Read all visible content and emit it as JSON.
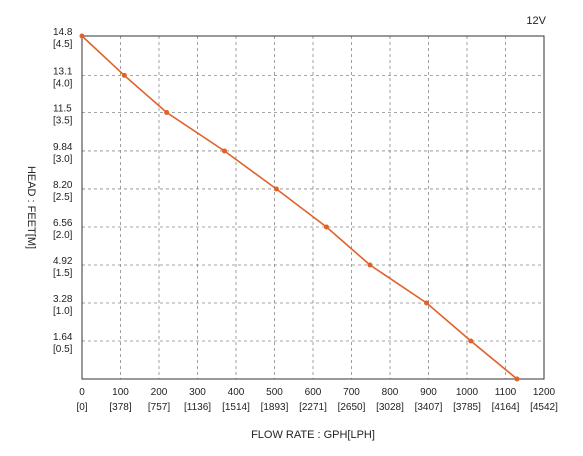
{
  "chart_data": {
    "type": "line",
    "voltage_label": "12V",
    "xlabel": "FLOW RATE : GPH[LPH]",
    "ylabel": "HEAD : FEET[M]",
    "xlim": [
      0,
      1200
    ],
    "ylim": [
      0,
      14.8
    ],
    "grid": true,
    "grid_style": "dashed",
    "line_color": "#e0622a",
    "x_ticks": [
      {
        "value": 0,
        "label": "0",
        "sub": "[0]"
      },
      {
        "value": 100,
        "label": "100",
        "sub": "[378]"
      },
      {
        "value": 200,
        "label": "200",
        "sub": "[757]"
      },
      {
        "value": 300,
        "label": "300",
        "sub": "[1136]"
      },
      {
        "value": 400,
        "label": "400",
        "sub": "[1514]"
      },
      {
        "value": 500,
        "label": "500",
        "sub": "[1893]"
      },
      {
        "value": 600,
        "label": "600",
        "sub": "[2271]"
      },
      {
        "value": 700,
        "label": "700",
        "sub": "[2650]"
      },
      {
        "value": 800,
        "label": "800",
        "sub": "[3028]"
      },
      {
        "value": 900,
        "label": "900",
        "sub": "[3407]"
      },
      {
        "value": 1000,
        "label": "1000",
        "sub": "[3785]"
      },
      {
        "value": 1100,
        "label": "1100",
        "sub": "[4164]"
      },
      {
        "value": 1200,
        "label": "1200",
        "sub": "[4542]"
      }
    ],
    "y_ticks": [
      {
        "value": 14.8,
        "label": "14.8",
        "sub": "[4.5]"
      },
      {
        "value": 13.1,
        "label": "13.1",
        "sub": "[4.0]"
      },
      {
        "value": 11.5,
        "label": "11.5",
        "sub": "[3.5]"
      },
      {
        "value": 9.84,
        "label": "9.84",
        "sub": "[3.0]"
      },
      {
        "value": 8.2,
        "label": "8.20",
        "sub": "[2.5]"
      },
      {
        "value": 6.56,
        "label": "6.56",
        "sub": "[2.0]"
      },
      {
        "value": 4.92,
        "label": "4.92",
        "sub": "[1.5]"
      },
      {
        "value": 3.28,
        "label": "3.28",
        "sub": "[1.0]"
      },
      {
        "value": 1.64,
        "label": "1.64",
        "sub": "[0.5]"
      }
    ],
    "series": [
      {
        "points": [
          {
            "x": 0,
            "y": 14.8
          },
          {
            "x": 110,
            "y": 13.1
          },
          {
            "x": 220,
            "y": 11.5
          },
          {
            "x": 370,
            "y": 9.84
          },
          {
            "x": 505,
            "y": 8.2
          },
          {
            "x": 635,
            "y": 6.56
          },
          {
            "x": 748,
            "y": 4.92
          },
          {
            "x": 895,
            "y": 3.28
          },
          {
            "x": 1010,
            "y": 1.64
          },
          {
            "x": 1130,
            "y": 0
          }
        ]
      }
    ]
  }
}
